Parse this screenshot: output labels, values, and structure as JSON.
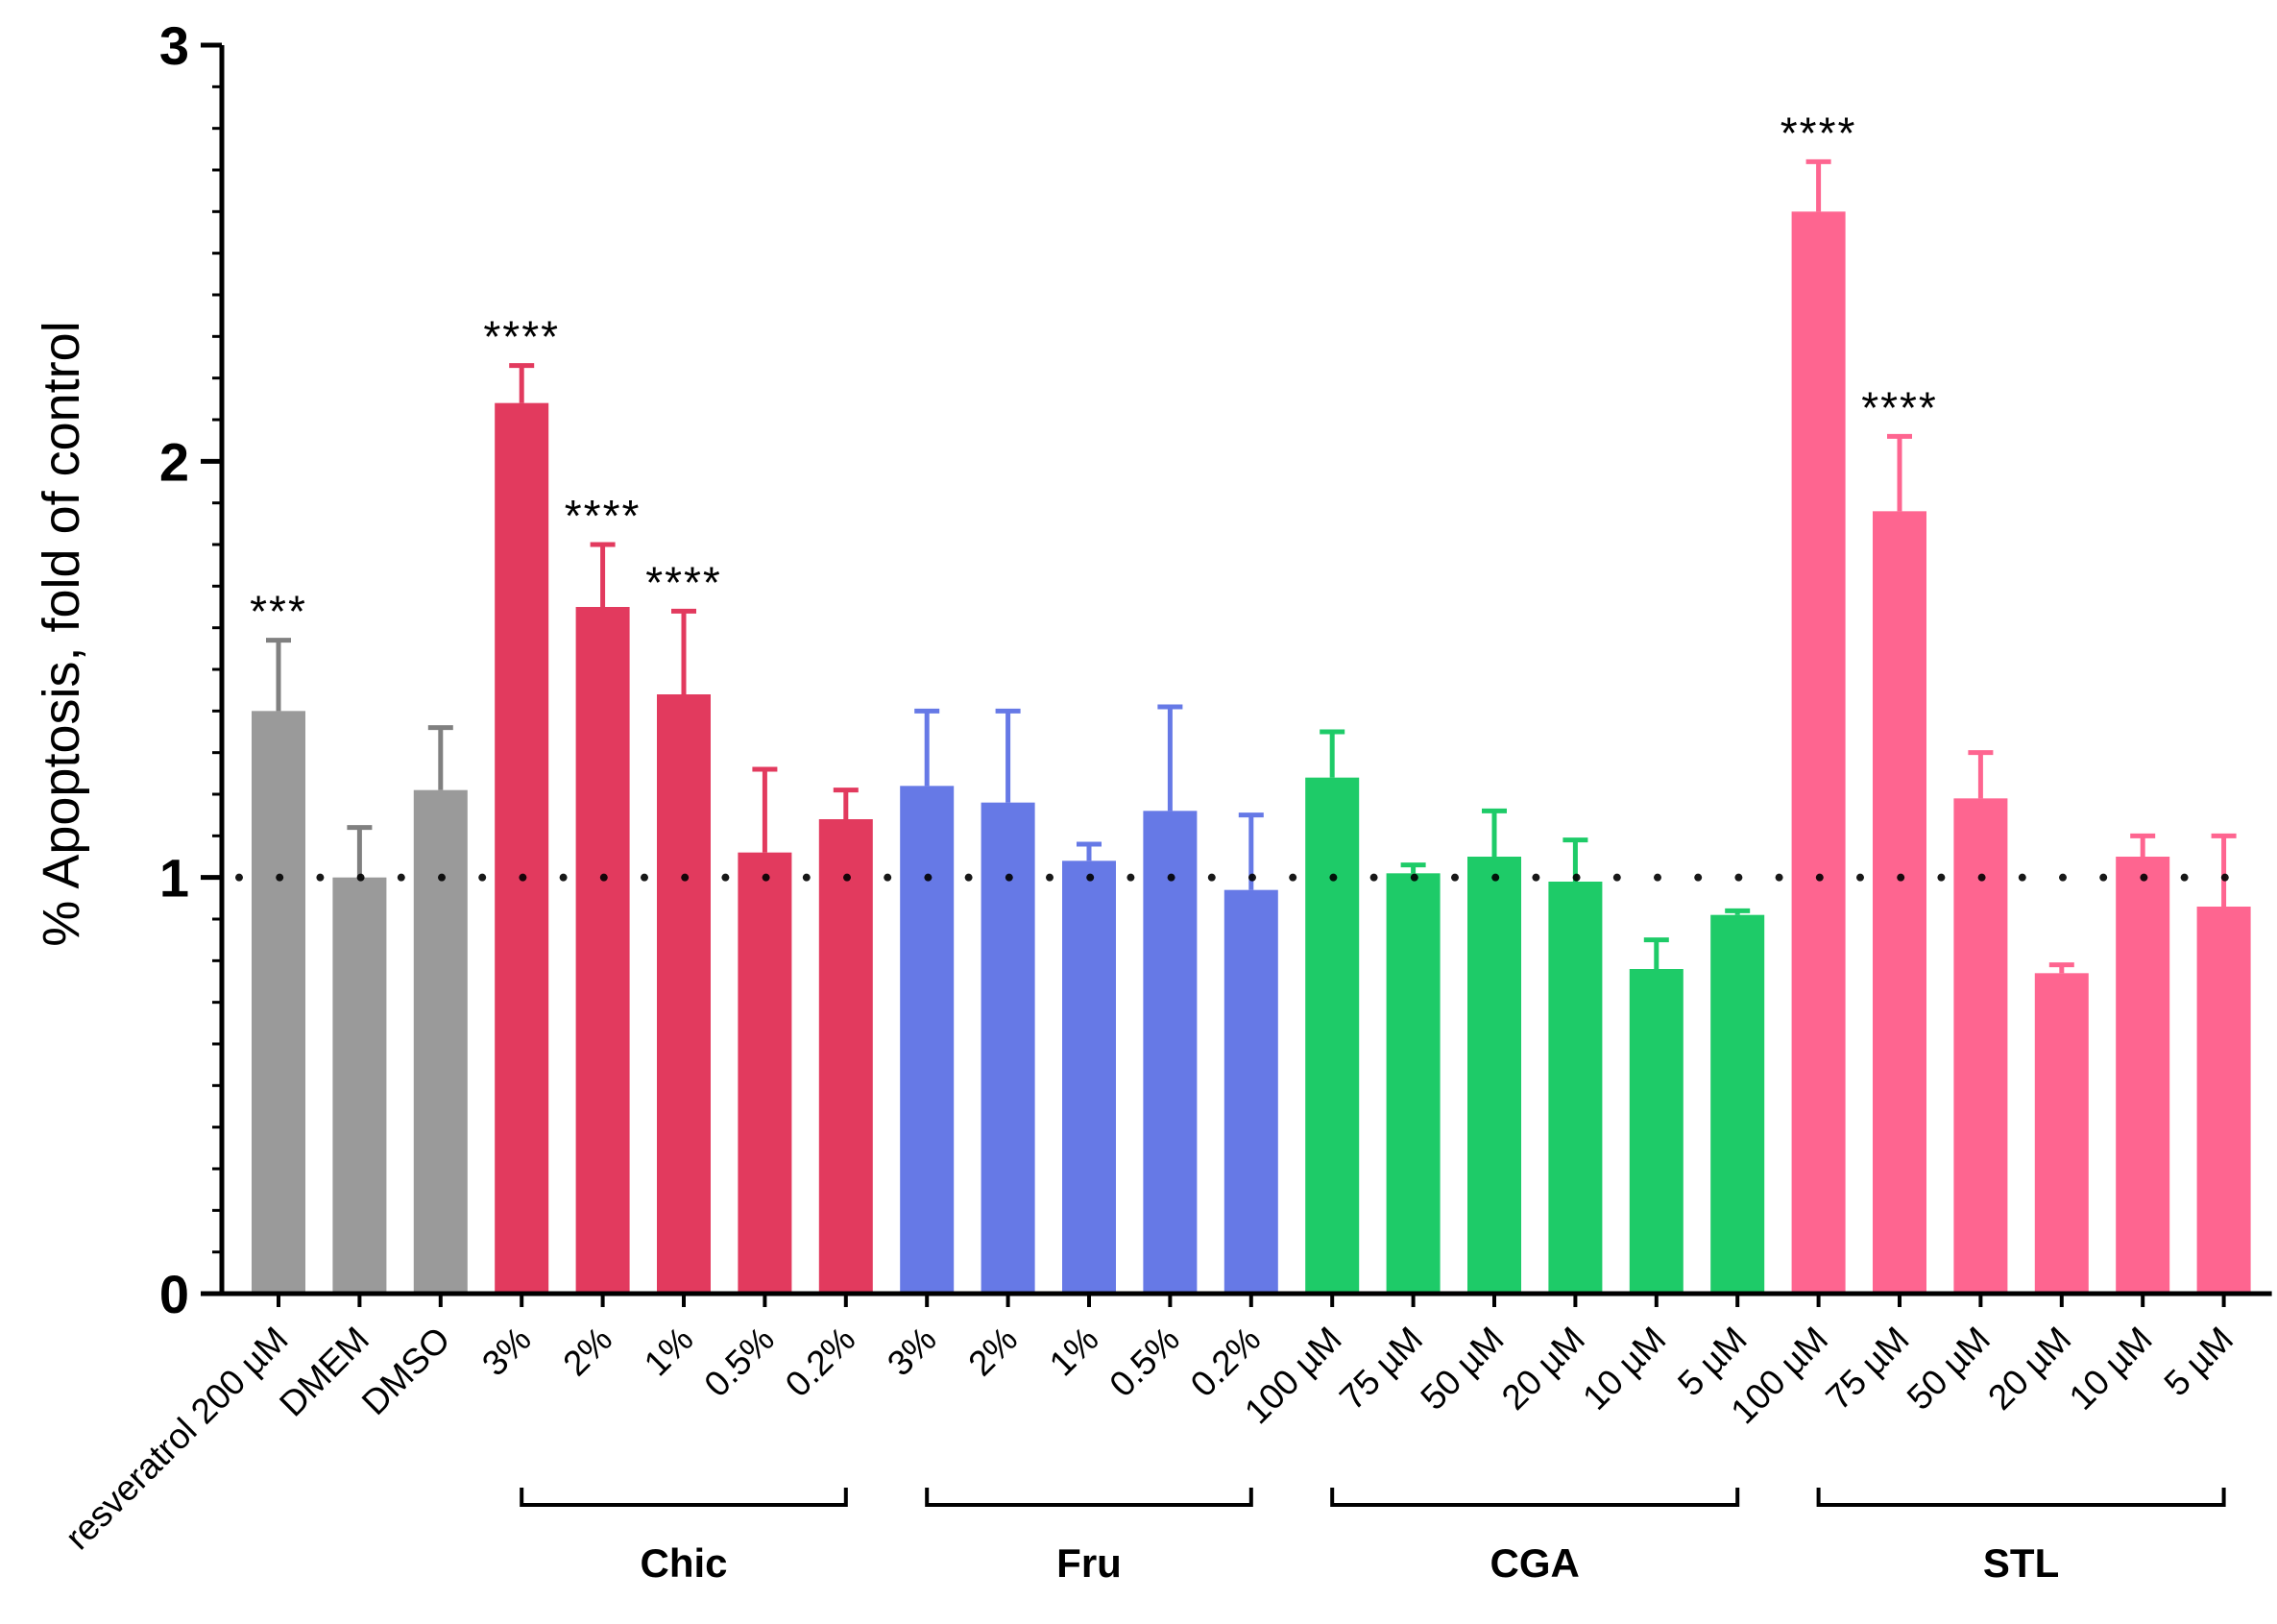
{
  "chart_data": {
    "type": "bar",
    "title": "",
    "xlabel": "",
    "ylabel": "% Apoptosis, fold of control",
    "ylim": [
      0,
      3
    ],
    "yticks": [
      "0",
      "1",
      "2",
      "3"
    ],
    "reference_line": 1,
    "categories": [
      "resveratrol 200 µM",
      "DMEM",
      "DMSO",
      "3%",
      "2%",
      "1%",
      "0.5%",
      "0.2%",
      "3%",
      "2%",
      "1%",
      "0.5%",
      "0.2%",
      "100 µM",
      "75 µM",
      "50 µM",
      "20 µM",
      "10 µM",
      "5 µM",
      "100 µM",
      "75 µM",
      "50 µM",
      "20 µM",
      "10 µM",
      "5 µM"
    ],
    "values": [
      1.4,
      1.0,
      1.21,
      2.14,
      1.65,
      1.44,
      1.06,
      1.14,
      1.22,
      1.18,
      1.04,
      1.16,
      0.97,
      1.24,
      1.01,
      1.05,
      0.99,
      0.78,
      0.91,
      2.6,
      1.88,
      1.19,
      0.77,
      1.05,
      0.93
    ],
    "errors": [
      0.17,
      0.12,
      0.15,
      0.09,
      0.15,
      0.2,
      0.2,
      0.07,
      0.18,
      0.22,
      0.04,
      0.25,
      0.18,
      0.11,
      0.02,
      0.11,
      0.1,
      0.07,
      0.01,
      0.12,
      0.18,
      0.11,
      0.02,
      0.05,
      0.17
    ],
    "significance": [
      "***",
      "",
      "",
      "****",
      "****",
      "****",
      "",
      "",
      "",
      "",
      "",
      "",
      "",
      "",
      "",
      "",
      "",
      "",
      "",
      "****",
      "****",
      "",
      "",
      "",
      ""
    ],
    "groups": [
      {
        "name": "Chic",
        "start": 3,
        "end": 7
      },
      {
        "name": "Fru",
        "start": 8,
        "end": 12
      },
      {
        "name": "CGA",
        "start": 13,
        "end": 18
      },
      {
        "name": "STL",
        "start": 19,
        "end": 24
      }
    ],
    "colors": {
      "control": "#9a9a9a",
      "control_err": "#808080",
      "Chic": "#e23a5e",
      "Fru": "#6679e6",
      "CGA": "#1ecb68",
      "STL": "#fe6590",
      "axis": "#000000"
    }
  }
}
